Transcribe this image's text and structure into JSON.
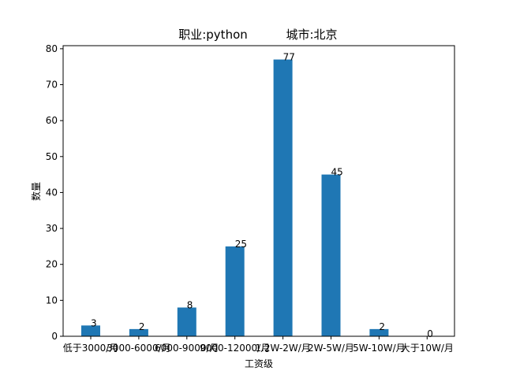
{
  "chart_data": {
    "type": "bar",
    "title_left": "职业:python",
    "title_right": "城市:北京",
    "xlabel": "工资级",
    "ylabel": "数量",
    "categories": [
      "低于3000/月",
      "3000-6000/月",
      "6000-9000/月",
      "9000-12000/月",
      "1.2W-2W/月",
      "2W-5W/月",
      "5W-10W/月",
      "大于10W/月"
    ],
    "values": [
      3,
      2,
      8,
      25,
      77,
      45,
      2,
      0
    ],
    "ylim": [
      0,
      80.85
    ],
    "yticks": [
      0,
      10,
      20,
      30,
      40,
      50,
      60,
      70,
      80
    ],
    "bar_color": "#1f77b4",
    "grid": false,
    "legend": "none"
  }
}
